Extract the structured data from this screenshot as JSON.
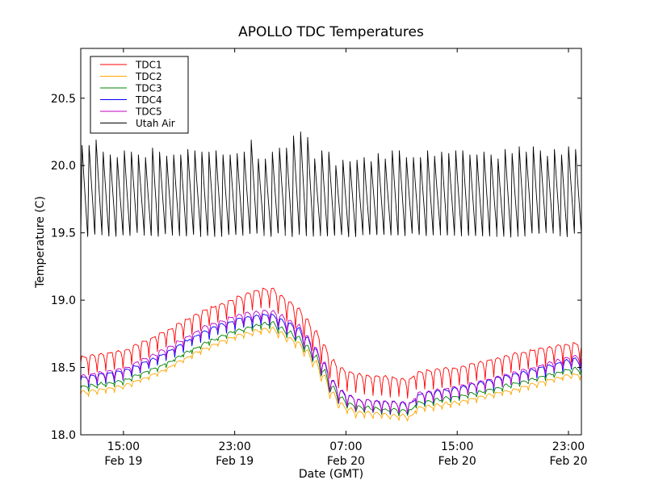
{
  "chart_data": {
    "type": "line",
    "title": "APOLLO TDC Temperatures",
    "xlabel": "Date (GMT)",
    "ylabel": "Temperature (C)",
    "x_units": "hours since Feb 19 00:00 GMT",
    "xlim": [
      11.93,
      47.93
    ],
    "ylim": [
      18.0,
      20.87
    ],
    "grid": false,
    "legend_position": "top-left",
    "x_ticks": [
      {
        "value": 15,
        "time": "15:00",
        "date": "Feb 19"
      },
      {
        "value": 23,
        "time": "23:00",
        "date": "Feb 19"
      },
      {
        "value": 31,
        "time": "07:00",
        "date": "Feb 20"
      },
      {
        "value": 39,
        "time": "15:00",
        "date": "Feb 20"
      },
      {
        "value": 47,
        "time": "23:00",
        "date": "Feb 20"
      }
    ],
    "y_ticks": [
      {
        "value": 18.0,
        "label": "18.0"
      },
      {
        "value": 18.5,
        "label": "18.5"
      },
      {
        "value": 19.0,
        "label": "19.0"
      },
      {
        "value": 19.5,
        "label": "19.5"
      },
      {
        "value": 20.0,
        "label": "20.0"
      },
      {
        "value": 20.5,
        "label": "20.5"
      }
    ],
    "series": [
      {
        "name": "TDC1",
        "color": "#ff0000",
        "cycle_hours": 0.62,
        "dip": 0.14,
        "envelope_x": [
          11.93,
          15,
          17.7,
          20.6,
          23,
          25.4,
          27.6,
          29,
          30.2,
          31.6,
          35.7,
          36.0,
          39,
          43.3,
          47,
          47.93
        ],
        "envelope_y": [
          18.58,
          18.63,
          18.76,
          18.92,
          19.02,
          19.1,
          18.92,
          18.72,
          18.5,
          18.45,
          18.41,
          18.47,
          18.5,
          18.61,
          18.68,
          18.68
        ]
      },
      {
        "name": "TDC2",
        "color": "#ffa500",
        "cycle_hours": 0.62,
        "dip": 0.04,
        "envelope_x": [
          11.93,
          15,
          17.7,
          20.6,
          23,
          25.4,
          27.6,
          29,
          30.2,
          31.6,
          35.7,
          36.0,
          39,
          43.3,
          47,
          47.93
        ],
        "envelope_y": [
          18.32,
          18.37,
          18.48,
          18.64,
          18.74,
          18.8,
          18.68,
          18.5,
          18.25,
          18.17,
          18.14,
          18.2,
          18.25,
          18.35,
          18.45,
          18.45
        ]
      },
      {
        "name": "TDC3",
        "color": "#008000",
        "cycle_hours": 0.62,
        "dip": 0.04,
        "envelope_x": [
          11.93,
          15,
          17.7,
          20.6,
          23,
          25.4,
          27.6,
          29,
          30.2,
          31.6,
          35.7,
          36.0,
          39,
          43.3,
          47,
          47.93
        ],
        "envelope_y": [
          18.36,
          18.41,
          18.52,
          18.68,
          18.78,
          18.84,
          18.72,
          18.54,
          18.29,
          18.21,
          18.18,
          18.24,
          18.29,
          18.39,
          18.49,
          18.49
        ]
      },
      {
        "name": "TDC4",
        "color": "#0000ff",
        "cycle_hours": 0.62,
        "dip": 0.08,
        "envelope_x": [
          11.93,
          15,
          17.7,
          20.6,
          23,
          25.4,
          27.6,
          29,
          30.2,
          31.6,
          35.7,
          36.0,
          39,
          43.3,
          47,
          47.93
        ],
        "envelope_y": [
          18.43,
          18.48,
          18.6,
          18.77,
          18.86,
          18.9,
          18.78,
          18.59,
          18.34,
          18.26,
          18.23,
          18.3,
          18.35,
          18.46,
          18.56,
          18.56
        ]
      },
      {
        "name": "TDC5",
        "color": "#bf00bf",
        "cycle_hours": 0.62,
        "dip": 0.08,
        "envelope_x": [
          11.93,
          15,
          17.7,
          20.6,
          23,
          25.4,
          27.6,
          29,
          30.2,
          31.6,
          35.7,
          36.0,
          39,
          43.3,
          47,
          47.93
        ],
        "envelope_y": [
          18.44,
          18.5,
          18.63,
          18.8,
          18.89,
          18.93,
          18.8,
          18.6,
          18.34,
          18.26,
          18.24,
          18.31,
          18.36,
          18.47,
          18.58,
          18.58
        ]
      },
      {
        "name": "Utah Air",
        "color": "#000000",
        "cycle_hours": 0.505,
        "low": 19.49,
        "peaks": [
          20.15,
          20.15,
          20.19,
          20.1,
          20.08,
          20.06,
          20.11,
          20.1,
          20.08,
          20.06,
          20.13,
          20.1,
          20.07,
          20.08,
          20.08,
          20.12,
          20.11,
          20.1,
          20.1,
          20.11,
          20.08,
          20.08,
          20.09,
          20.1,
          20.19,
          20.05,
          20.05,
          20.1,
          20.13,
          20.13,
          20.22,
          20.25,
          20.21,
          20.05,
          20.11,
          20.1,
          20.0,
          20.04,
          20.03,
          20.04,
          20.06,
          20.03,
          20.09,
          20.05,
          20.11,
          20.11,
          20.06,
          20.06,
          20.06,
          20.11,
          20.07,
          20.1,
          20.09,
          20.11,
          20.11,
          20.08,
          20.08,
          20.1,
          20.08,
          20.05,
          20.12,
          20.09,
          20.14,
          20.1,
          20.14,
          20.11,
          20.07,
          20.12,
          20.08,
          20.14,
          20.12
        ]
      }
    ]
  }
}
